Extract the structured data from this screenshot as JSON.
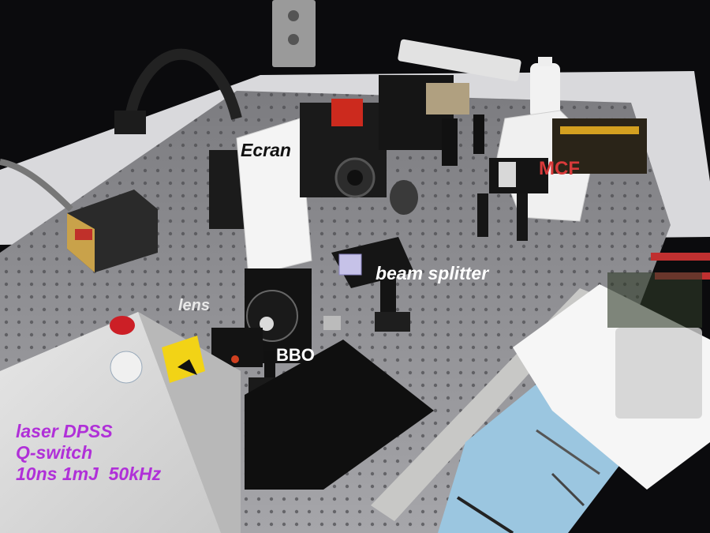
{
  "labels": {
    "ecran": "Ecran",
    "mcf": "MCF",
    "beam_splitter": "beam splitter",
    "lens": "lens",
    "bbo": "BBO"
  },
  "laser_caption": {
    "line1": "laser DPSS",
    "line2": "Q-switch",
    "line3": "10ns 1mJ  50kHz"
  },
  "colors": {
    "label_dark": "#111111",
    "label_light": "#ffffff",
    "mcf_label": "#d83a3a",
    "laser_caption": "#b030d8",
    "table_surface": "#8e8e92",
    "background": "#0b0b0d"
  }
}
